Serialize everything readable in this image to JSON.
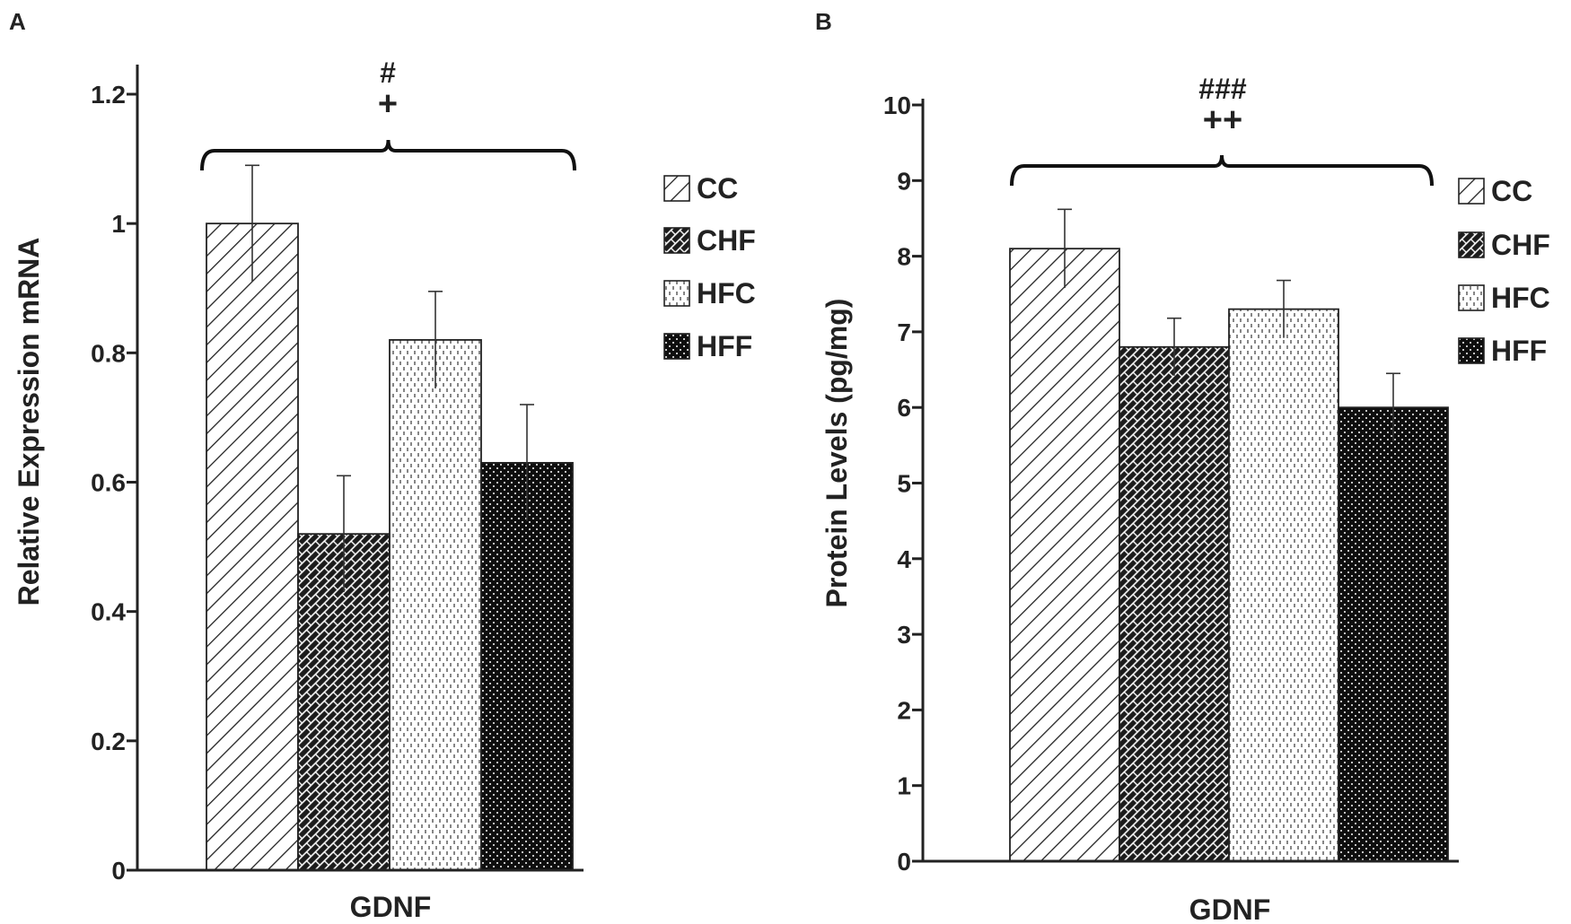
{
  "chart_data": [
    {
      "panel_label": "A",
      "type": "bar",
      "title": "",
      "xlabel": "GDNF",
      "ylabel": "Relative Expression mRNA",
      "ylim": [
        0,
        1.2
      ],
      "yticks": [
        "0",
        "0.2",
        "0.4",
        "0.6",
        "0.8",
        "1",
        "1.2"
      ],
      "ytick_values": [
        0,
        0.2,
        0.4,
        0.6,
        0.8,
        1,
        1.2
      ],
      "categories": [
        "CC",
        "CHF",
        "HFC",
        "HFF"
      ],
      "values": [
        1.0,
        0.52,
        0.82,
        0.63
      ],
      "errors": [
        0.09,
        0.09,
        0.075,
        0.09
      ],
      "annotation_top": "#",
      "annotation_bottom": "+",
      "legend": [
        "CC",
        "CHF",
        "HFC",
        "HFF"
      ],
      "legend_position": "right"
    },
    {
      "panel_label": "B",
      "type": "bar",
      "title": "",
      "xlabel": "GDNF",
      "ylabel": "Protein Levels  (pg/mg)",
      "ylim": [
        0,
        10
      ],
      "yticks": [
        "0",
        "1",
        "2",
        "3",
        "4",
        "5",
        "6",
        "7",
        "8",
        "9",
        "10"
      ],
      "ytick_values": [
        0,
        1,
        2,
        3,
        4,
        5,
        6,
        7,
        8,
        9,
        10
      ],
      "categories": [
        "CC",
        "CHF",
        "HFC",
        "HFF"
      ],
      "values": [
        8.1,
        6.8,
        7.3,
        6.0
      ],
      "errors": [
        0.52,
        0.38,
        0.38,
        0.45
      ],
      "annotation_top": "###",
      "annotation_bottom": "++",
      "legend": [
        "CC",
        "CHF",
        "HFC",
        "HFF"
      ],
      "legend_position": "right"
    }
  ],
  "colors": {
    "axis": "#222222",
    "bar_fill": "#ffffff",
    "dark_fill": "#111111"
  }
}
